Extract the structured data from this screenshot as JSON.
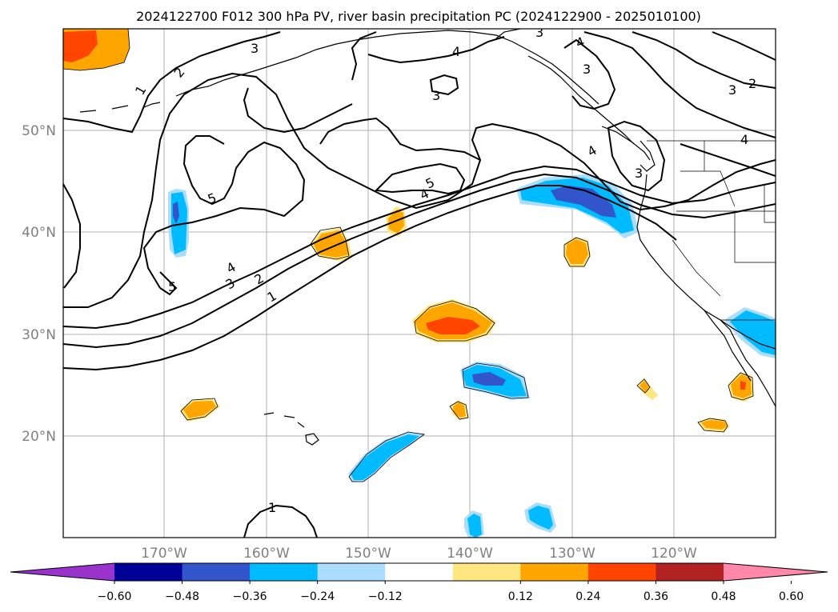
{
  "title": "2024122700 F012 300 hPa PV, river basin precipitation PC (2024122900 - 2025010100)",
  "map": {
    "lat_labels": [
      "50°N",
      "40°N",
      "30°N",
      "20°N"
    ],
    "lon_labels": [
      "170°W",
      "160°W",
      "150°W",
      "140°W",
      "130°W",
      "120°W"
    ],
    "pv_contour_labels": [
      "1",
      "2",
      "3",
      "4",
      "5",
      "5",
      "4",
      "3",
      "2",
      "1",
      "4",
      "3",
      "3",
      "2",
      "4",
      "3",
      "3",
      "4",
      "5",
      "4",
      "1",
      "3"
    ]
  },
  "colorbar": {
    "tick_labels": [
      "−0.60",
      "−0.48",
      "−0.36",
      "−0.24",
      "−0.12",
      "0.12",
      "0.24",
      "0.36",
      "0.48",
      "0.60"
    ],
    "colors": {
      "under": "#9933cc",
      "bins": [
        "#000099",
        "#3355cc",
        "#00bbff",
        "#aaddff",
        "#ffffff",
        "#ffe680",
        "#ffa500",
        "#ff4500",
        "#b22222"
      ],
      "over": "#ff88aa"
    }
  }
}
